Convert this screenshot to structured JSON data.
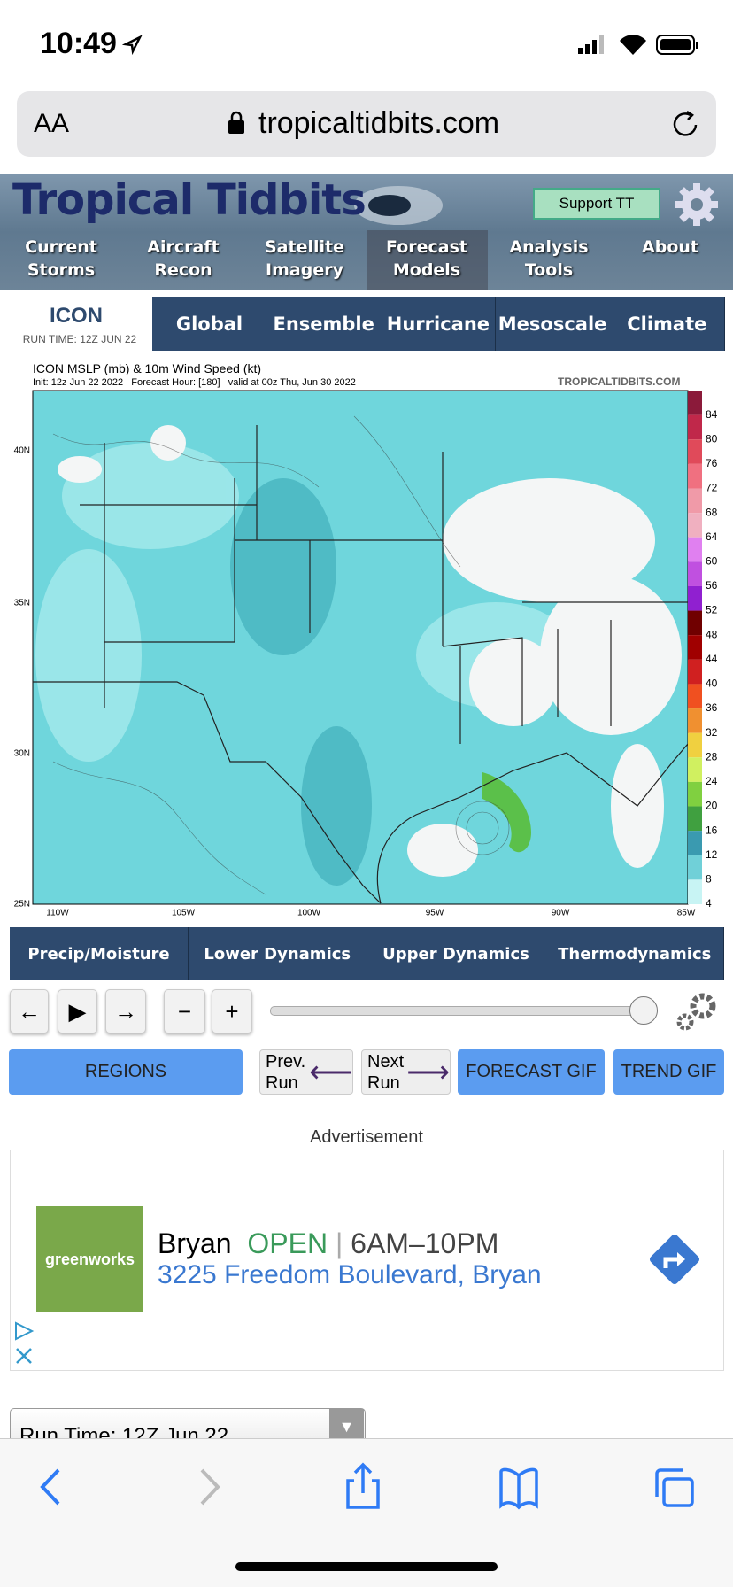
{
  "status_bar": {
    "time": "10:49"
  },
  "browser": {
    "text_size": "AA",
    "url": "tropicaltidbits.com"
  },
  "site": {
    "logo": "Tropical Tidbits",
    "support": "Support TT",
    "nav": [
      "Current Storms",
      "Aircraft Recon",
      "Satellite Imagery",
      "Forecast Models",
      "Analysis Tools",
      "About"
    ]
  },
  "model": {
    "name": "ICON",
    "run_time": "RUN TIME: 12Z JUN 22",
    "tabs": [
      "Global",
      "Ensemble",
      "Hurricane",
      "Mesoscale",
      "Climate"
    ]
  },
  "map": {
    "title": "ICON MSLP (mb) & 10m Wind Speed (kt)",
    "subtitle": "Init: 12z Jun 22 2022   Forecast Hour: [180]   valid at 00z Thu, Jun 30 2022",
    "credit": "TROPICALTIDBITS.COM",
    "lat_labels": [
      "40N",
      "35N",
      "30N",
      "25N"
    ],
    "lon_labels": [
      "110W",
      "105W",
      "100W",
      "95W",
      "90W",
      "85W"
    ],
    "colorbar_labels": [
      "84",
      "80",
      "76",
      "72",
      "68",
      "64",
      "60",
      "56",
      "52",
      "48",
      "44",
      "40",
      "36",
      "32",
      "28",
      "24",
      "20",
      "16",
      "12",
      "8",
      "4"
    ]
  },
  "categories": [
    "Precip/Moisture",
    "Lower Dynamics",
    "Upper Dynamics",
    "Thermodynamics"
  ],
  "buttons": {
    "regions": "REGIONS",
    "prev": "Prev. Run",
    "next": "Next Run",
    "forecast_gif": "FORECAST GIF",
    "trend_gif": "TREND GIF"
  },
  "ad": {
    "label": "Advertisement",
    "brand": "greenworks",
    "place": "Bryan",
    "status": "OPEN",
    "hours": "6AM–10PM",
    "address": "3225 Freedom Boulevard, Bryan"
  },
  "run_time_select": "Run Time: 12Z Jun 22"
}
